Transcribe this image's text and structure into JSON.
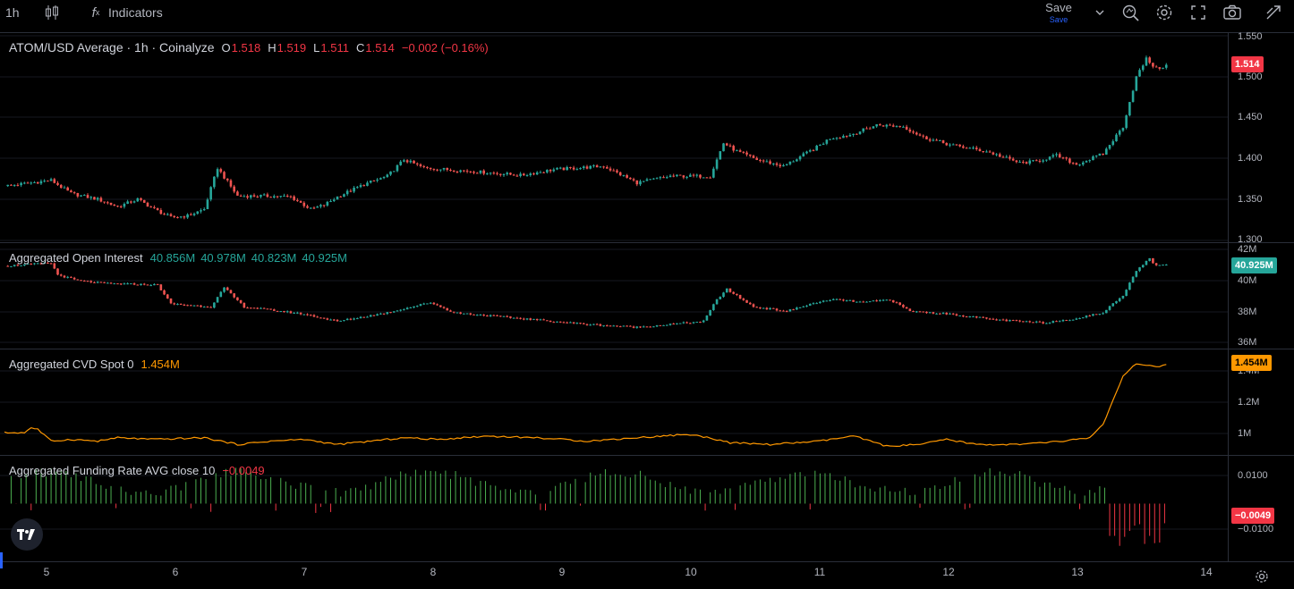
{
  "toolbar": {
    "interval": "1h",
    "indicators_label": "Indicators",
    "save_label": "Save",
    "save_sub": "Save"
  },
  "main": {
    "symbol_title": "ATOM/USD Average · 1h · Coinalyze",
    "open_key": "O",
    "open": "1.518",
    "high_key": "H",
    "high": "1.519",
    "low_key": "L",
    "low": "1.511",
    "close_key": "C",
    "close": "1.514",
    "change": "−0.002 (−0.16%)",
    "price_badge": "1.514",
    "ticks": [
      "1.550",
      "1.500",
      "1.450",
      "1.400",
      "1.350",
      "1.300"
    ]
  },
  "oi": {
    "title": "Aggregated Open Interest",
    "values": [
      "40.856M",
      "40.978M",
      "40.823M",
      "40.925M"
    ],
    "badge": "40.925M",
    "ticks": [
      "42M",
      "40M",
      "38M",
      "36M"
    ]
  },
  "cvd": {
    "title": "Aggregated CVD Spot 0",
    "value": "1.454M",
    "badge": "1.454M",
    "ticks": [
      "1.4M",
      "1.2M",
      "1M"
    ]
  },
  "funding": {
    "title": "Aggregated Funding Rate AVG close 10",
    "value": "−0.0049",
    "badge": "−0.0049",
    "ticks": [
      "0.0100",
      "−0.0100"
    ]
  },
  "time_axis": [
    "5",
    "6",
    "7",
    "8",
    "9",
    "10",
    "11",
    "12",
    "13",
    "14"
  ],
  "colors": {
    "up": "#26a69a",
    "down": "#ef5350",
    "cvd_line": "#ff9800",
    "funding_up": "#4caf50",
    "funding_down": "#f23645",
    "oi_badge": "#26a69a",
    "price_badge": "#f23645",
    "cvd_badge": "#ff9800"
  },
  "chart_data": [
    {
      "type": "candlestick",
      "series": [
        {
          "name": "ATOM/USD Average · 1h · Coinalyze"
        }
      ],
      "x": [
        "5",
        "6",
        "7",
        "8",
        "9",
        "10",
        "11",
        "12",
        "13",
        "14"
      ],
      "ylim": [
        1.3,
        1.55
      ],
      "keyframes_close": [
        [
          0,
          1.368
        ],
        [
          14,
          1.375
        ],
        [
          20,
          1.359
        ],
        [
          28,
          1.352
        ],
        [
          34,
          1.343
        ],
        [
          40,
          1.352
        ],
        [
          45,
          1.34
        ],
        [
          50,
          1.33
        ],
        [
          55,
          1.332
        ],
        [
          60,
          1.34
        ],
        [
          64,
          1.39
        ],
        [
          70,
          1.356
        ],
        [
          78,
          1.356
        ],
        [
          86,
          1.355
        ],
        [
          92,
          1.34
        ],
        [
          96,
          1.345
        ],
        [
          100,
          1.355
        ],
        [
          108,
          1.37
        ],
        [
          115,
          1.38
        ],
        [
          120,
          1.4
        ],
        [
          126,
          1.39
        ],
        [
          140,
          1.386
        ],
        [
          155,
          1.381
        ],
        [
          165,
          1.388
        ],
        [
          180,
          1.392
        ],
        [
          190,
          1.372
        ],
        [
          200,
          1.38
        ],
        [
          212,
          1.38
        ],
        [
          216,
          1.42
        ],
        [
          220,
          1.41
        ],
        [
          226,
          1.4
        ],
        [
          234,
          1.392
        ],
        [
          244,
          1.415
        ],
        [
          248,
          1.426
        ],
        [
          254,
          1.43
        ],
        [
          262,
          1.442
        ],
        [
          270,
          1.44
        ],
        [
          276,
          1.427
        ],
        [
          284,
          1.418
        ],
        [
          295,
          1.41
        ],
        [
          305,
          1.396
        ],
        [
          310,
          1.398
        ],
        [
          316,
          1.405
        ],
        [
          322,
          1.394
        ],
        [
          330,
          1.407
        ],
        [
          336,
          1.44
        ],
        [
          340,
          1.5
        ],
        [
          343,
          1.522
        ],
        [
          346,
          1.51
        ],
        [
          349,
          1.514
        ]
      ]
    },
    {
      "type": "bar",
      "series": [
        {
          "name": "Aggregated Open Interest",
          "values": [
            40.856,
            40.978,
            40.823,
            40.925
          ]
        }
      ],
      "ylim": [
        35.5,
        42
      ],
      "keyframes": [
        [
          0,
          40.8
        ],
        [
          14,
          41.0
        ],
        [
          16,
          40.2
        ],
        [
          22,
          39.8
        ],
        [
          30,
          39.6
        ],
        [
          46,
          39.5
        ],
        [
          50,
          38.2
        ],
        [
          62,
          38.0
        ],
        [
          66,
          39.3
        ],
        [
          72,
          38.0
        ],
        [
          90,
          37.5
        ],
        [
          100,
          37.0
        ],
        [
          115,
          37.6
        ],
        [
          128,
          38.3
        ],
        [
          135,
          37.6
        ],
        [
          150,
          37.3
        ],
        [
          165,
          37.0
        ],
        [
          175,
          36.8
        ],
        [
          190,
          36.6
        ],
        [
          200,
          36.8
        ],
        [
          210,
          37.0
        ],
        [
          214,
          38.5
        ],
        [
          217,
          39.2
        ],
        [
          225,
          38.0
        ],
        [
          235,
          37.7
        ],
        [
          244,
          38.3
        ],
        [
          250,
          38.5
        ],
        [
          258,
          38.3
        ],
        [
          266,
          38.5
        ],
        [
          272,
          37.7
        ],
        [
          284,
          37.5
        ],
        [
          298,
          37.1
        ],
        [
          312,
          36.9
        ],
        [
          322,
          37.2
        ],
        [
          330,
          37.6
        ],
        [
          336,
          38.8
        ],
        [
          340,
          40.5
        ],
        [
          344,
          41.3
        ],
        [
          346,
          40.8
        ],
        [
          349,
          40.9
        ]
      ]
    },
    {
      "type": "line",
      "series": [
        {
          "name": "Aggregated CVD Spot 0",
          "values": [
            1.454
          ]
        }
      ],
      "ylim": [
        0.95,
        1.5
      ],
      "keyframes": [
        [
          0,
          1.05
        ],
        [
          6,
          1.05
        ],
        [
          8,
          1.08
        ],
        [
          10,
          1.07
        ],
        [
          14,
          1.0
        ],
        [
          20,
          1.01
        ],
        [
          28,
          1.0
        ],
        [
          34,
          1.02
        ],
        [
          45,
          1.01
        ],
        [
          60,
          1.02
        ],
        [
          70,
          0.98
        ],
        [
          80,
          1.0
        ],
        [
          90,
          1.01
        ],
        [
          100,
          0.98
        ],
        [
          110,
          1.0
        ],
        [
          120,
          1.02
        ],
        [
          130,
          1.01
        ],
        [
          145,
          1.03
        ],
        [
          160,
          1.02
        ],
        [
          175,
          1.0
        ],
        [
          190,
          1.02
        ],
        [
          205,
          1.04
        ],
        [
          212,
          1.02
        ],
        [
          218,
          0.99
        ],
        [
          230,
          0.98
        ],
        [
          245,
          1.0
        ],
        [
          255,
          1.03
        ],
        [
          265,
          0.97
        ],
        [
          275,
          0.98
        ],
        [
          283,
          1.01
        ],
        [
          292,
          0.98
        ],
        [
          305,
          0.98
        ],
        [
          318,
          1.0
        ],
        [
          326,
          1.02
        ],
        [
          330,
          1.1
        ],
        [
          336,
          1.38
        ],
        [
          340,
          1.46
        ],
        [
          345,
          1.44
        ],
        [
          349,
          1.45
        ]
      ]
    },
    {
      "type": "bar",
      "series": [
        {
          "name": "Aggregated Funding Rate AVG close 10",
          "values": [
            -0.0049
          ]
        }
      ],
      "ylim": [
        -0.0175,
        0.0145
      ]
    }
  ]
}
